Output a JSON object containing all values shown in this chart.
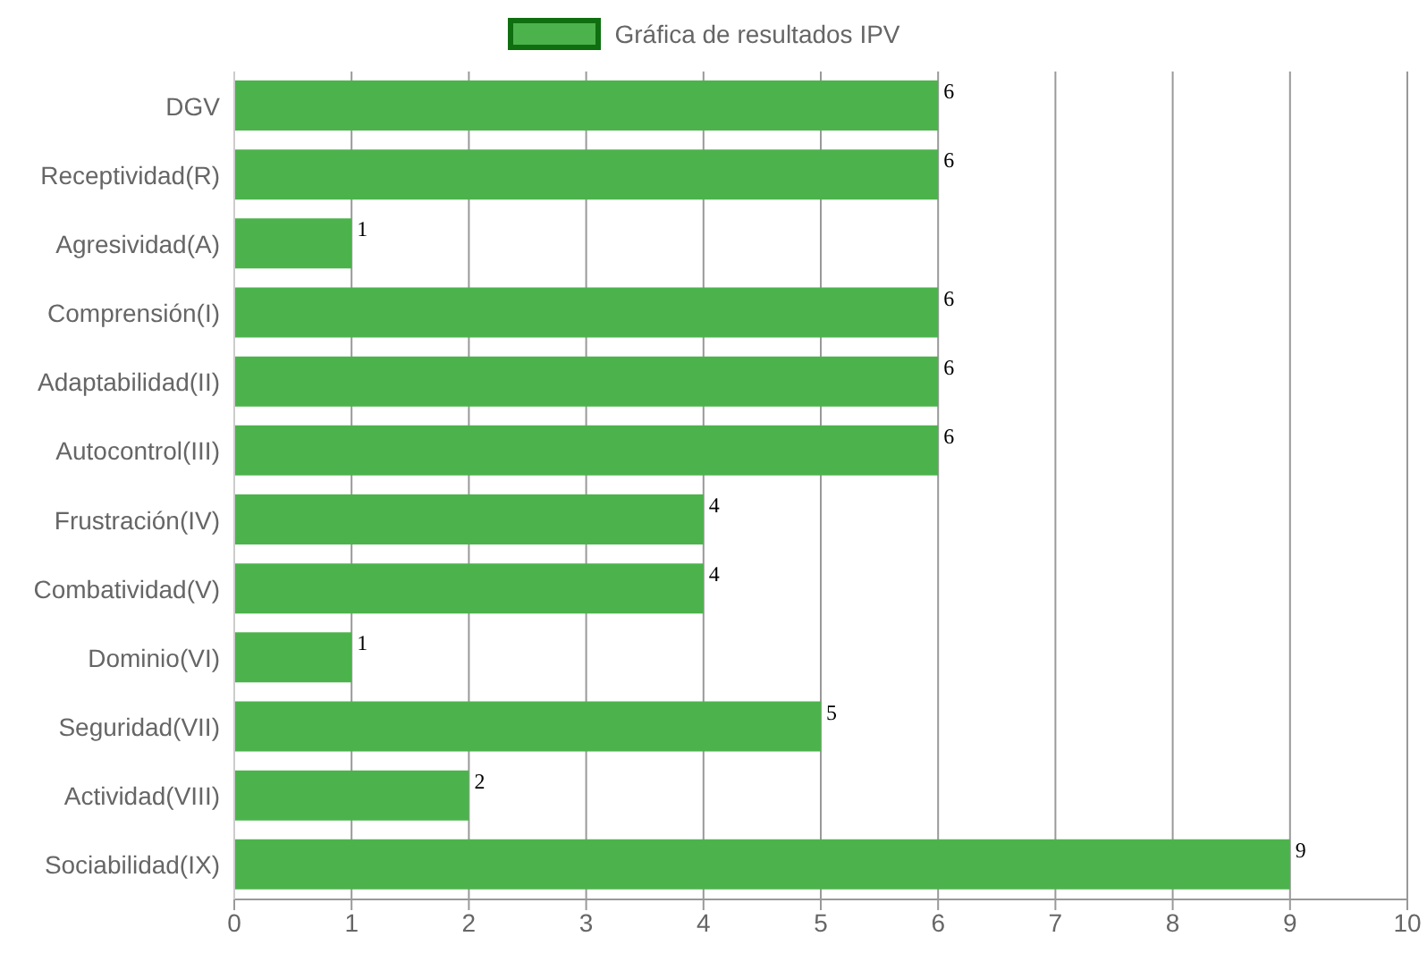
{
  "chart_data": {
    "type": "bar",
    "orientation": "horizontal",
    "categories": [
      "DGV",
      "Receptividad(R)",
      "Agresividad(A)",
      "Comprensión(I)",
      "Adaptabilidad(II)",
      "Autocontrol(III)",
      "Frustración(IV)",
      "Combatividad(V)",
      "Dominio(VI)",
      "Seguridad(VII)",
      "Actividad(VIII)",
      "Sociabilidad(IX)"
    ],
    "series": [
      {
        "name": "Gráfica de resultados IPV",
        "color": "#4cb34c",
        "values": [
          6,
          6,
          1,
          6,
          6,
          6,
          4,
          4,
          1,
          5,
          2,
          9
        ]
      }
    ],
    "xlim": [
      0,
      10
    ],
    "xticks": [
      0,
      1,
      2,
      3,
      4,
      5,
      6,
      7,
      8,
      9,
      10
    ],
    "grid": "x",
    "legend": "top",
    "data_labels": true
  }
}
